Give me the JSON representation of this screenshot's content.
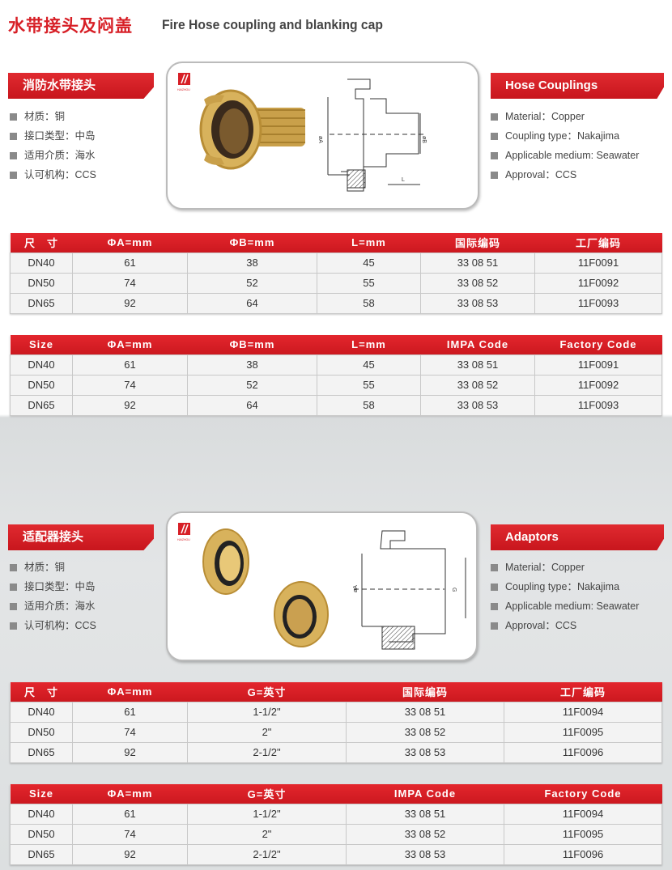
{
  "title": {
    "cn": "水带接头及闷盖",
    "en": "Fire Hose coupling and blanking cap"
  },
  "colors": {
    "accent": "#d71f26",
    "bullet": "#8a8a8a"
  },
  "logo_text": "HAIZHOU",
  "sections": [
    {
      "banner_cn": "消防水带接头",
      "banner_en": "Hose Couplings",
      "specs_cn": [
        "材质：铜",
        "接口类型：中岛",
        "适用介质：海水",
        "认可机构：CCS"
      ],
      "specs_en": [
        "Material：Copper",
        "Coupling type：Nakajima",
        "Applicable medium: Seawater",
        "Approval：CCS"
      ],
      "drawing_labels": [
        "øA",
        "øB",
        "L"
      ],
      "table_cn": {
        "headers": [
          "尺　寸",
          "ΦA=mm",
          "ΦB=mm",
          "L=mm",
          "国际编码",
          "工厂编码"
        ],
        "rows": [
          [
            "DN40",
            "61",
            "38",
            "45",
            "33 08 51",
            "11F0091"
          ],
          [
            "DN50",
            "74",
            "52",
            "55",
            "33 08 52",
            "11F0092"
          ],
          [
            "DN65",
            "92",
            "64",
            "58",
            "33 08 53",
            "11F0093"
          ]
        ]
      },
      "table_en": {
        "headers": [
          "Size",
          "ΦA=mm",
          "ΦB=mm",
          "L=mm",
          "IMPA Code",
          "Factory Code"
        ],
        "rows": [
          [
            "DN40",
            "61",
            "38",
            "45",
            "33 08 51",
            "11F0091"
          ],
          [
            "DN50",
            "74",
            "52",
            "55",
            "33 08 52",
            "11F0092"
          ],
          [
            "DN65",
            "92",
            "64",
            "58",
            "33 08 53",
            "11F0093"
          ]
        ]
      }
    },
    {
      "banner_cn": "适配器接头",
      "banner_en": "Adaptors",
      "specs_cn": [
        "材质：铜",
        "接口类型：中岛",
        "适用介质：海水",
        "认可机构：CCS"
      ],
      "specs_en": [
        "Material：Copper",
        "Coupling type：Nakajima",
        "Applicable medium: Seawater",
        "Approval：CCS"
      ],
      "drawing_labels": [
        "øA",
        "G"
      ],
      "table_cn": {
        "headers": [
          "尺　寸",
          "ΦA=mm",
          "G=英寸",
          "国际编码",
          "工厂编码"
        ],
        "rows": [
          [
            "DN40",
            "61",
            "1-1/2\"",
            "33 08 51",
            "11F0094"
          ],
          [
            "DN50",
            "74",
            "2\"",
            "33 08 52",
            "11F0095"
          ],
          [
            "DN65",
            "92",
            "2-1/2\"",
            "33 08 53",
            "11F0096"
          ]
        ]
      },
      "table_en": {
        "headers": [
          "Size",
          "ΦA=mm",
          "G=英寸",
          "IMPA Code",
          "Factory Code"
        ],
        "rows": [
          [
            "DN40",
            "61",
            "1-1/2\"",
            "33 08 51",
            "11F0094"
          ],
          [
            "DN50",
            "74",
            "2\"",
            "33 08 52",
            "11F0095"
          ],
          [
            "DN65",
            "92",
            "2-1/2\"",
            "33 08 53",
            "11F0096"
          ]
        ]
      }
    }
  ]
}
